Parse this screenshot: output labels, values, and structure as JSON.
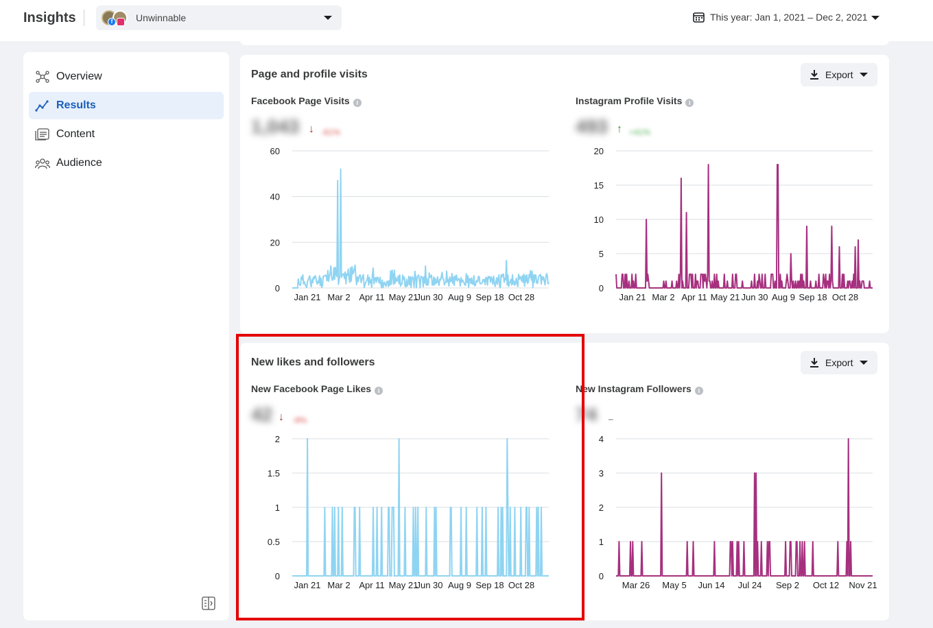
{
  "app": {
    "title": "Insights",
    "account_name": "Unwinnable",
    "date_range": "This year: Jan 1, 2021 – Dec 2, 2021"
  },
  "sidebar": {
    "items": [
      {
        "label": "Overview",
        "icon": "overview-icon",
        "active": false
      },
      {
        "label": "Results",
        "icon": "results-icon",
        "active": true
      },
      {
        "label": "Content",
        "icon": "content-icon",
        "active": false
      },
      {
        "label": "Audience",
        "icon": "audience-icon",
        "active": false
      }
    ]
  },
  "cards": [
    {
      "title": "Page and profile visits",
      "export_label": "Export",
      "metrics": [
        {
          "title": "Facebook Page Visits",
          "value": "1,043",
          "change": "-61%",
          "direction": "down"
        },
        {
          "title": "Instagram Profile Visits",
          "value": "493",
          "change": "+41%",
          "direction": "up"
        }
      ]
    },
    {
      "title": "New likes and followers",
      "export_label": "Export",
      "metrics": [
        {
          "title": "New Facebook Page Likes",
          "value": "42",
          "change": "-9%",
          "direction": "down"
        },
        {
          "title": "New Instagram Followers",
          "value": "74",
          "change": "–",
          "direction": "none"
        }
      ]
    }
  ],
  "colors": {
    "facebook_series": "#8fd4f2",
    "instagram_series": "#a6307f",
    "accent": "#1b5fb8",
    "highlight": "#e50000"
  },
  "chart_data": [
    {
      "type": "line",
      "title": "Facebook Page Visits",
      "ylim": [
        0,
        60
      ],
      "yticks": [
        "0",
        "20",
        "40",
        "60"
      ],
      "xticks": [
        "Jan 21",
        "Mar 2",
        "Apr 11",
        "May 21",
        "Jun 30",
        "Aug 9",
        "Sep 18",
        "Oct 28"
      ],
      "color": "#8fd4f2",
      "peaks": [
        [
          60,
          47
        ],
        [
          64,
          52
        ],
        [
          83,
          10
        ],
        [
          283,
          12
        ],
        [
          306,
          6
        ],
        [
          330,
          5
        ]
      ]
    },
    {
      "type": "line",
      "title": "Instagram Profile Visits",
      "ylim": [
        0,
        20
      ],
      "yticks": [
        "0",
        "5",
        "10",
        "15",
        "20"
      ],
      "xticks": [
        "Jan 21",
        "Mar 2",
        "Apr 11",
        "May 21",
        "Jun 30",
        "Aug 9",
        "Sep 18",
        "Oct 28"
      ],
      "color": "#a6307f",
      "peaks": [
        [
          40,
          10
        ],
        [
          86,
          16
        ],
        [
          93,
          11
        ],
        [
          122,
          18
        ],
        [
          213,
          18
        ],
        [
          214,
          18
        ],
        [
          231,
          5
        ],
        [
          252,
          9
        ],
        [
          285,
          9
        ],
        [
          295,
          6
        ],
        [
          316,
          6
        ],
        [
          320,
          7
        ]
      ]
    },
    {
      "type": "line",
      "title": "New Facebook Page Likes",
      "ylim": [
        0,
        2
      ],
      "yticks": [
        "0",
        "0.5",
        "1",
        "1.5",
        "2"
      ],
      "xticks": [
        "Jan 21",
        "Mar 2",
        "Apr 11",
        "May 21",
        "Jun 30",
        "Aug 9",
        "Sep 18",
        "Oct 28"
      ],
      "color": "#8fd4f2",
      "peaks": [
        [
          20,
          2
        ],
        [
          141,
          2
        ],
        [
          284,
          2
        ]
      ]
    },
    {
      "type": "line",
      "title": "New Instagram Followers",
      "ylim": [
        0,
        4
      ],
      "yticks": [
        "0",
        "1",
        "2",
        "3",
        "4"
      ],
      "xticks": [
        "Mar 26",
        "May 5",
        "Jun 14",
        "Jul 24",
        "Sep 2",
        "Oct 12",
        "Nov 21"
      ],
      "color": "#a6307f",
      "peaks": [
        [
          60,
          3
        ],
        [
          183,
          3
        ],
        [
          185,
          3
        ],
        [
          307,
          4
        ]
      ]
    }
  ]
}
